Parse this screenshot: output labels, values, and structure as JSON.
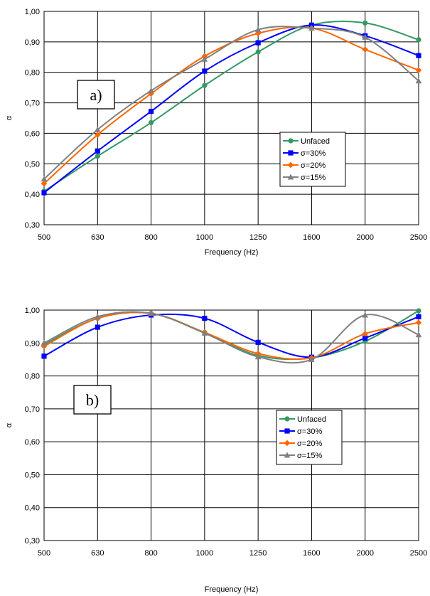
{
  "chart_data": [
    {
      "type": "line",
      "panel_label": "a)",
      "x": [
        500,
        630,
        800,
        1000,
        1250,
        1600,
        2000,
        2500
      ],
      "x_tick_labels": [
        "500",
        "630",
        "800",
        "1000",
        "1250",
        "1600",
        "2000",
        "2500"
      ],
      "xlabel": "Frequency (Hz)",
      "ylabel": "α",
      "ylim": [
        0.3,
        1.0
      ],
      "y_tick_labels": [
        "0,30",
        "0,40",
        "0,50",
        "0,60",
        "0,70",
        "0,80",
        "0,90",
        "1,00"
      ],
      "grid": true,
      "legend_position": "right",
      "series": [
        {
          "name": "Unfaced",
          "color": "#339966",
          "marker": "circle",
          "values": [
            0.41,
            0.525,
            0.635,
            0.757,
            0.867,
            0.955,
            0.962,
            0.907
          ]
        },
        {
          "name": "σ=30%",
          "color": "#0000ff",
          "marker": "square",
          "values": [
            0.405,
            0.542,
            0.672,
            0.804,
            0.897,
            0.955,
            0.92,
            0.855
          ]
        },
        {
          "name": "σ=20%",
          "color": "#ff6600",
          "marker": "diamond",
          "values": [
            0.435,
            0.595,
            0.73,
            0.853,
            0.928,
            0.945,
            0.875,
            0.807
          ]
        },
        {
          "name": "σ=15%",
          "color": "#808080",
          "marker": "triangle",
          "values": [
            0.45,
            0.612,
            0.74,
            0.843,
            0.94,
            0.945,
            0.915,
            0.772
          ]
        }
      ]
    },
    {
      "type": "line",
      "panel_label": "b)",
      "x": [
        500,
        630,
        800,
        1000,
        1250,
        1600,
        2000,
        2500
      ],
      "x_tick_labels": [
        "500",
        "630",
        "800",
        "1000",
        "1250",
        "1600",
        "2000",
        "2500"
      ],
      "xlabel": "Frequency (Hz)",
      "ylabel": "α",
      "ylim": [
        0.3,
        1.0
      ],
      "y_tick_labels": [
        "0,30",
        "0,40",
        "0,50",
        "0,60",
        "0,70",
        "0,80",
        "0,90",
        "1,00"
      ],
      "grid": true,
      "legend_position": "right",
      "series": [
        {
          "name": "Unfaced",
          "color": "#339966",
          "marker": "circle",
          "values": [
            0.895,
            0.975,
            0.99,
            0.932,
            0.862,
            0.855,
            0.905,
            0.998
          ]
        },
        {
          "name": "σ=30%",
          "color": "#0000ff",
          "marker": "square",
          "values": [
            0.86,
            0.948,
            0.985,
            0.975,
            0.902,
            0.857,
            0.915,
            0.98
          ]
        },
        {
          "name": "σ=20%",
          "color": "#ff6600",
          "marker": "diamond",
          "values": [
            0.89,
            0.975,
            0.99,
            0.932,
            0.868,
            0.855,
            0.928,
            0.962
          ]
        },
        {
          "name": "σ=15%",
          "color": "#808080",
          "marker": "triangle",
          "values": [
            0.9,
            0.98,
            0.99,
            0.93,
            0.858,
            0.85,
            0.985,
            0.925
          ]
        }
      ]
    }
  ]
}
